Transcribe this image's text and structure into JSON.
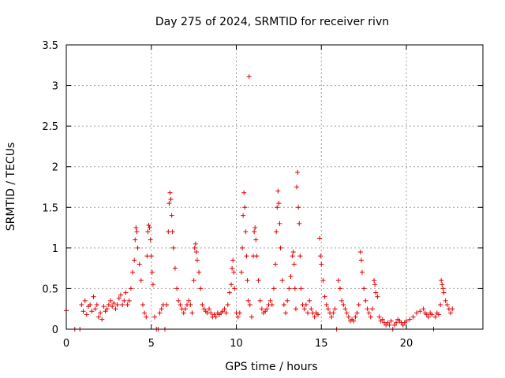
{
  "chart_data": {
    "type": "scatter",
    "title": "Day 275 of 2024, SRMTID for receiver rivn",
    "xlabel": "GPS time / hours",
    "ylabel": "SRMTID / TECUs",
    "xlim": [
      0,
      24.5
    ],
    "ylim": [
      0,
      3.5
    ],
    "xticks": [
      0,
      5,
      10,
      15,
      20
    ],
    "xtick_labels": [
      "0",
      "5",
      "10",
      "15",
      "20"
    ],
    "yticks": [
      0,
      0.5,
      1,
      1.5,
      2,
      2.5,
      3,
      3.5
    ],
    "ytick_labels": [
      "0",
      "0.5",
      "1",
      "1.5",
      "2",
      "2.5",
      "3",
      "3.5"
    ],
    "grid": true,
    "marker": "plus",
    "color": "#e00000",
    "series": [
      {
        "name": "SRMTID",
        "points": [
          [
            0.0,
            0.23
          ],
          [
            0.5,
            0.0
          ],
          [
            0.8,
            0.0
          ],
          [
            0.9,
            0.3
          ],
          [
            1.0,
            0.22
          ],
          [
            1.1,
            0.35
          ],
          [
            1.2,
            0.18
          ],
          [
            1.3,
            0.28
          ],
          [
            1.4,
            0.3
          ],
          [
            1.5,
            0.22
          ],
          [
            1.6,
            0.4
          ],
          [
            1.7,
            0.25
          ],
          [
            1.8,
            0.3
          ],
          [
            1.9,
            0.15
          ],
          [
            2.0,
            0.2
          ],
          [
            2.1,
            0.12
          ],
          [
            2.2,
            0.28
          ],
          [
            2.3,
            0.22
          ],
          [
            2.4,
            0.25
          ],
          [
            2.5,
            0.3
          ],
          [
            2.6,
            0.35
          ],
          [
            2.7,
            0.28
          ],
          [
            2.8,
            0.32
          ],
          [
            2.9,
            0.25
          ],
          [
            3.0,
            0.3
          ],
          [
            3.1,
            0.38
          ],
          [
            3.2,
            0.42
          ],
          [
            3.3,
            0.3
          ],
          [
            3.4,
            0.35
          ],
          [
            3.5,
            0.45
          ],
          [
            3.6,
            0.3
          ],
          [
            3.7,
            0.35
          ],
          [
            3.8,
            0.5
          ],
          [
            3.9,
            0.7
          ],
          [
            4.0,
            0.85
          ],
          [
            4.05,
            1.1
          ],
          [
            4.1,
            1.25
          ],
          [
            4.15,
            1.2
          ],
          [
            4.2,
            1.0
          ],
          [
            4.3,
            0.8
          ],
          [
            4.4,
            0.6
          ],
          [
            4.5,
            0.3
          ],
          [
            4.6,
            0.2
          ],
          [
            4.7,
            0.15
          ],
          [
            4.75,
            0.9
          ],
          [
            4.8,
            1.2
          ],
          [
            4.85,
            1.28
          ],
          [
            4.9,
            1.25
          ],
          [
            4.95,
            1.1
          ],
          [
            5.0,
            0.9
          ],
          [
            5.05,
            0.7
          ],
          [
            5.1,
            0.55
          ],
          [
            5.2,
            0.15
          ],
          [
            5.3,
            0.0
          ],
          [
            5.4,
            0.0
          ],
          [
            5.5,
            0.2
          ],
          [
            5.6,
            0.25
          ],
          [
            5.7,
            0.3
          ],
          [
            5.8,
            0.0
          ],
          [
            5.9,
            0.3
          ],
          [
            6.0,
            1.2
          ],
          [
            6.05,
            1.55
          ],
          [
            6.1,
            1.68
          ],
          [
            6.15,
            1.6
          ],
          [
            6.2,
            1.4
          ],
          [
            6.25,
            1.2
          ],
          [
            6.3,
            1.0
          ],
          [
            6.4,
            0.75
          ],
          [
            6.5,
            0.5
          ],
          [
            6.6,
            0.35
          ],
          [
            6.7,
            0.3
          ],
          [
            6.8,
            0.25
          ],
          [
            6.9,
            0.2
          ],
          [
            7.0,
            0.25
          ],
          [
            7.1,
            0.3
          ],
          [
            7.2,
            0.35
          ],
          [
            7.3,
            0.3
          ],
          [
            7.4,
            0.2
          ],
          [
            7.5,
            0.6
          ],
          [
            7.55,
            1.0
          ],
          [
            7.6,
            1.05
          ],
          [
            7.65,
            0.95
          ],
          [
            7.7,
            0.85
          ],
          [
            7.8,
            0.7
          ],
          [
            7.9,
            0.5
          ],
          [
            8.0,
            0.3
          ],
          [
            8.1,
            0.25
          ],
          [
            8.2,
            0.22
          ],
          [
            8.3,
            0.2
          ],
          [
            8.4,
            0.25
          ],
          [
            8.5,
            0.2
          ],
          [
            8.6,
            0.15
          ],
          [
            8.7,
            0.18
          ],
          [
            8.8,
            0.15
          ],
          [
            8.9,
            0.2
          ],
          [
            9.0,
            0.18
          ],
          [
            9.1,
            0.2
          ],
          [
            9.2,
            0.22
          ],
          [
            9.3,
            0.25
          ],
          [
            9.4,
            0.2
          ],
          [
            9.5,
            0.3
          ],
          [
            9.6,
            0.45
          ],
          [
            9.7,
            0.55
          ],
          [
            9.75,
            0.75
          ],
          [
            9.8,
            0.85
          ],
          [
            9.85,
            0.7
          ],
          [
            9.9,
            0.5
          ],
          [
            10.0,
            0.2
          ],
          [
            10.1,
            0.15
          ],
          [
            10.2,
            0.2
          ],
          [
            10.3,
            0.7
          ],
          [
            10.35,
            1.0
          ],
          [
            10.4,
            1.4
          ],
          [
            10.45,
            1.68
          ],
          [
            10.5,
            1.5
          ],
          [
            10.55,
            1.2
          ],
          [
            10.6,
            0.9
          ],
          [
            10.65,
            0.6
          ],
          [
            10.7,
            0.35
          ],
          [
            10.75,
            3.11
          ],
          [
            10.8,
            0.3
          ],
          [
            10.9,
            0.15
          ],
          [
            11.0,
            0.9
          ],
          [
            11.05,
            1.2
          ],
          [
            11.1,
            1.25
          ],
          [
            11.15,
            1.1
          ],
          [
            11.2,
            0.9
          ],
          [
            11.3,
            0.6
          ],
          [
            11.4,
            0.35
          ],
          [
            11.5,
            0.25
          ],
          [
            11.6,
            0.2
          ],
          [
            11.7,
            0.22
          ],
          [
            11.8,
            0.25
          ],
          [
            11.9,
            0.3
          ],
          [
            12.0,
            0.35
          ],
          [
            12.1,
            0.3
          ],
          [
            12.2,
            0.5
          ],
          [
            12.3,
            0.8
          ],
          [
            12.35,
            1.2
          ],
          [
            12.4,
            1.5
          ],
          [
            12.45,
            1.7
          ],
          [
            12.5,
            1.55
          ],
          [
            12.55,
            1.3
          ],
          [
            12.6,
            1.0
          ],
          [
            12.7,
            0.6
          ],
          [
            12.8,
            0.3
          ],
          [
            12.9,
            0.2
          ],
          [
            13.0,
            0.35
          ],
          [
            13.1,
            0.5
          ],
          [
            13.2,
            0.65
          ],
          [
            13.3,
            0.9
          ],
          [
            13.35,
            0.95
          ],
          [
            13.4,
            0.8
          ],
          [
            13.45,
            0.5
          ],
          [
            13.5,
            0.25
          ],
          [
            13.55,
            1.75
          ],
          [
            13.6,
            1.93
          ],
          [
            13.65,
            1.5
          ],
          [
            13.7,
            1.3
          ],
          [
            13.75,
            0.9
          ],
          [
            13.8,
            0.5
          ],
          [
            13.9,
            0.3
          ],
          [
            14.0,
            0.25
          ],
          [
            14.1,
            0.3
          ],
          [
            14.2,
            0.2
          ],
          [
            14.3,
            0.35
          ],
          [
            14.4,
            0.25
          ],
          [
            14.5,
            0.2
          ],
          [
            14.6,
            0.15
          ],
          [
            14.7,
            0.2
          ],
          [
            14.8,
            0.18
          ],
          [
            14.9,
            1.12
          ],
          [
            14.95,
            0.9
          ],
          [
            15.0,
            0.8
          ],
          [
            15.1,
            0.6
          ],
          [
            15.2,
            0.4
          ],
          [
            15.3,
            0.3
          ],
          [
            15.4,
            0.25
          ],
          [
            15.5,
            0.2
          ],
          [
            15.6,
            0.15
          ],
          [
            15.7,
            0.2
          ],
          [
            15.8,
            0.25
          ],
          [
            15.9,
            0.0
          ],
          [
            16.0,
            0.6
          ],
          [
            16.1,
            0.5
          ],
          [
            16.2,
            0.35
          ],
          [
            16.3,
            0.3
          ],
          [
            16.4,
            0.25
          ],
          [
            16.5,
            0.2
          ],
          [
            16.6,
            0.15
          ],
          [
            16.7,
            0.1
          ],
          [
            16.8,
            0.12
          ],
          [
            16.9,
            0.1
          ],
          [
            17.0,
            0.15
          ],
          [
            17.1,
            0.2
          ],
          [
            17.2,
            0.3
          ],
          [
            17.3,
            0.95
          ],
          [
            17.35,
            0.85
          ],
          [
            17.4,
            0.7
          ],
          [
            17.5,
            0.5
          ],
          [
            17.6,
            0.35
          ],
          [
            17.7,
            0.25
          ],
          [
            17.8,
            0.2
          ],
          [
            17.9,
            0.15
          ],
          [
            18.0,
            0.25
          ],
          [
            18.1,
            0.6
          ],
          [
            18.15,
            0.55
          ],
          [
            18.2,
            0.45
          ],
          [
            18.3,
            0.4
          ],
          [
            18.4,
            0.15
          ],
          [
            18.5,
            0.1
          ],
          [
            18.6,
            0.12
          ],
          [
            18.7,
            0.08
          ],
          [
            18.8,
            0.05
          ],
          [
            18.9,
            0.08
          ],
          [
            19.0,
            0.05
          ],
          [
            19.1,
            0.1
          ],
          [
            19.2,
            0.0
          ],
          [
            19.3,
            0.05
          ],
          [
            19.4,
            0.08
          ],
          [
            19.5,
            0.12
          ],
          [
            19.6,
            0.1
          ],
          [
            19.7,
            0.08
          ],
          [
            19.8,
            0.05
          ],
          [
            19.9,
            0.08
          ],
          [
            20.0,
            0.1
          ],
          [
            20.2,
            0.12
          ],
          [
            20.4,
            0.15
          ],
          [
            20.6,
            0.2
          ],
          [
            20.8,
            0.22
          ],
          [
            21.0,
            0.25
          ],
          [
            21.1,
            0.2
          ],
          [
            21.2,
            0.18
          ],
          [
            21.3,
            0.15
          ],
          [
            21.4,
            0.2
          ],
          [
            21.5,
            0.18
          ],
          [
            21.6,
            0.0
          ],
          [
            21.7,
            0.15
          ],
          [
            21.8,
            0.2
          ],
          [
            21.9,
            0.18
          ],
          [
            22.0,
            0.3
          ],
          [
            22.05,
            0.6
          ],
          [
            22.1,
            0.55
          ],
          [
            22.15,
            0.5
          ],
          [
            22.2,
            0.45
          ],
          [
            22.3,
            0.35
          ],
          [
            22.4,
            0.3
          ],
          [
            22.5,
            0.25
          ],
          [
            22.6,
            0.2
          ],
          [
            22.7,
            0.25
          ]
        ]
      }
    ]
  }
}
